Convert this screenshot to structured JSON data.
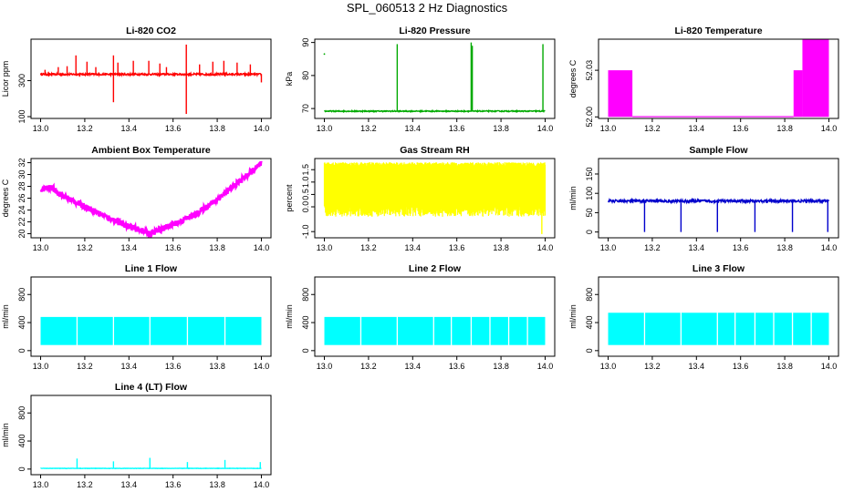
{
  "page": {
    "title": "SPL_060513  2 Hz Diagnostics"
  },
  "chart_data": [
    {
      "type": "line",
      "title": "Li-820 CO2",
      "ylabel": "Licor ppm",
      "xlim": [
        13.0,
        14.0
      ],
      "ylim": [
        90,
        530
      ],
      "xticks": [
        13.0,
        13.2,
        13.4,
        13.6,
        13.8,
        14.0
      ],
      "yticks": [
        100,
        300
      ],
      "color": "#ff0000",
      "pattern": "spiky",
      "base": 335,
      "noise": 10,
      "spikes": [
        {
          "x": 13.02,
          "y": 360
        },
        {
          "x": 13.08,
          "y": 375
        },
        {
          "x": 13.12,
          "y": 380
        },
        {
          "x": 13.16,
          "y": 440
        },
        {
          "x": 13.21,
          "y": 405
        },
        {
          "x": 13.25,
          "y": 375
        },
        {
          "x": 13.33,
          "y": 440
        },
        {
          "x": 13.33,
          "y": 180
        },
        {
          "x": 13.35,
          "y": 400
        },
        {
          "x": 13.42,
          "y": 410
        },
        {
          "x": 13.49,
          "y": 410
        },
        {
          "x": 13.54,
          "y": 395
        },
        {
          "x": 13.57,
          "y": 375
        },
        {
          "x": 13.66,
          "y": 500
        },
        {
          "x": 13.66,
          "y": 115
        },
        {
          "x": 13.72,
          "y": 390
        },
        {
          "x": 13.78,
          "y": 405
        },
        {
          "x": 13.83,
          "y": 410
        },
        {
          "x": 13.89,
          "y": 400
        },
        {
          "x": 13.95,
          "y": 390
        },
        {
          "x": 14.0,
          "y": 290
        }
      ]
    },
    {
      "type": "line",
      "title": "Li-820 Pressure",
      "ylabel": "kPa",
      "xlim": [
        13.0,
        14.0
      ],
      "ylim": [
        67,
        91
      ],
      "xticks": [
        13.0,
        13.2,
        13.4,
        13.6,
        13.8,
        14.0
      ],
      "yticks": [
        70,
        80,
        90
      ],
      "color": "#00aa00",
      "pattern": "spiky",
      "base": 69.2,
      "noise": 0.3,
      "spikes": [
        {
          "x": 13.33,
          "y": 89.5
        },
        {
          "x": 13.665,
          "y": 90
        },
        {
          "x": 13.67,
          "y": 89
        },
        {
          "x": 13.99,
          "y": 89.5
        }
      ],
      "points": [
        {
          "x": 13.0,
          "y": 86.5
        }
      ]
    },
    {
      "type": "area",
      "title": "Li-820 Temperature",
      "ylabel": "degrees C",
      "xlim": [
        13.0,
        14.0
      ],
      "ylim": [
        51.999,
        52.05
      ],
      "xticks": [
        13.0,
        13.2,
        13.4,
        13.6,
        13.8,
        14.0
      ],
      "yticks": [
        52.0,
        52.03
      ],
      "ytick_labels": [
        "52.00",
        "52.03"
      ],
      "color": "#ff00ff",
      "pattern": "bands",
      "bands": [
        {
          "x0": 13.0,
          "x1": 13.11,
          "y0": 52.0,
          "y1": 52.03
        },
        {
          "x0": 13.11,
          "x1": 13.84,
          "y0": 52.0,
          "y1": 52.0005
        },
        {
          "x0": 13.84,
          "x1": 13.88,
          "y0": 52.0,
          "y1": 52.03
        },
        {
          "x0": 13.88,
          "x1": 14.0,
          "y0": 52.0,
          "y1": 52.05
        }
      ]
    },
    {
      "type": "line",
      "title": "Ambient Box Temperature",
      "ylabel": "degrees C",
      "xlim": [
        13.0,
        14.0
      ],
      "ylim": [
        19.3,
        32.7
      ],
      "xticks": [
        13.0,
        13.2,
        13.4,
        13.6,
        13.8,
        14.0
      ],
      "yticks": [
        20,
        22,
        24,
        26,
        28,
        30,
        32
      ],
      "color": "#ff00ff",
      "pattern": "curve",
      "noise": 0.5,
      "curve": [
        {
          "x": 13.0,
          "y": 27.5
        },
        {
          "x": 13.05,
          "y": 27.8
        },
        {
          "x": 13.1,
          "y": 26.4
        },
        {
          "x": 13.2,
          "y": 24.6
        },
        {
          "x": 13.3,
          "y": 22.8
        },
        {
          "x": 13.4,
          "y": 21.2
        },
        {
          "x": 13.5,
          "y": 20.0
        },
        {
          "x": 13.6,
          "y": 21.6
        },
        {
          "x": 13.7,
          "y": 23.2
        },
        {
          "x": 13.8,
          "y": 25.8
        },
        {
          "x": 13.9,
          "y": 28.8
        },
        {
          "x": 14.0,
          "y": 31.8
        }
      ]
    },
    {
      "type": "area",
      "title": "Gas Stream RH",
      "ylabel": "percent",
      "xlim": [
        13.0,
        14.0
      ],
      "ylim": [
        -1.25,
        1.95
      ],
      "xticks": [
        13.0,
        13.2,
        13.4,
        13.6,
        13.8,
        14.0
      ],
      "yticks": [
        -1.0,
        0.0,
        0.5,
        1.0,
        1.5
      ],
      "ytick_labels": [
        "-1.0",
        "0.0",
        "0.5",
        "1.0",
        "1.5"
      ],
      "color": "#ffff00",
      "pattern": "noiseband",
      "upper": [
        1.65,
        1.8
      ],
      "lower": [
        -0.4,
        0.05
      ],
      "dips": [
        {
          "x": 13.985,
          "y": -1.1
        }
      ]
    },
    {
      "type": "line",
      "title": "Sample Flow",
      "ylabel": "ml/min",
      "xlim": [
        13.0,
        14.0
      ],
      "ylim": [
        -15,
        190
      ],
      "xticks": [
        13.0,
        13.2,
        13.4,
        13.6,
        13.8,
        14.0
      ],
      "yticks": [
        0,
        50,
        100,
        150
      ],
      "color": "#0000cc",
      "pattern": "dips",
      "base": 80,
      "noise": 7,
      "dips": [
        {
          "x": 13.165,
          "y": 0
        },
        {
          "x": 13.33,
          "y": 0
        },
        {
          "x": 13.495,
          "y": 0
        },
        {
          "x": 13.665,
          "y": 0
        },
        {
          "x": 13.835,
          "y": 0
        },
        {
          "x": 13.995,
          "y": 0
        }
      ]
    },
    {
      "type": "area",
      "title": "Line 1 Flow",
      "ylabel": "ml/min",
      "xlim": [
        13.0,
        14.0
      ],
      "ylim": [
        -80,
        1050
      ],
      "xticks": [
        13.0,
        13.2,
        13.4,
        13.6,
        13.8,
        14.0
      ],
      "yticks": [
        0,
        400,
        800
      ],
      "color": "#00ffff",
      "pattern": "block",
      "upper": 480,
      "lower": 80,
      "gaps": [
        13.165,
        13.33,
        13.495,
        13.665,
        13.835
      ]
    },
    {
      "type": "area",
      "title": "Line 2 Flow",
      "ylabel": "ml/min",
      "xlim": [
        13.0,
        14.0
      ],
      "ylim": [
        -80,
        1050
      ],
      "xticks": [
        13.0,
        13.2,
        13.4,
        13.6,
        13.8,
        14.0
      ],
      "yticks": [
        0,
        400,
        800
      ],
      "color": "#00ffff",
      "pattern": "block",
      "upper": 480,
      "lower": 80,
      "gaps": [
        13.165,
        13.33,
        13.495,
        13.575,
        13.665,
        13.75,
        13.835,
        13.92
      ]
    },
    {
      "type": "area",
      "title": "Line 3 Flow",
      "ylabel": "ml/min",
      "xlim": [
        13.0,
        14.0
      ],
      "ylim": [
        -80,
        1050
      ],
      "xticks": [
        13.0,
        13.2,
        13.4,
        13.6,
        13.8,
        14.0
      ],
      "yticks": [
        0,
        400,
        800
      ],
      "color": "#00ffff",
      "pattern": "block",
      "upper": 540,
      "lower": 80,
      "gaps": [
        13.165,
        13.33,
        13.495,
        13.575,
        13.665,
        13.75,
        13.835,
        13.92
      ]
    },
    {
      "type": "line",
      "title": "Line 4 (LT) Flow",
      "ylabel": "ml/min",
      "xlim": [
        13.0,
        14.0
      ],
      "ylim": [
        -80,
        1050
      ],
      "xticks": [
        13.0,
        13.2,
        13.4,
        13.6,
        13.8,
        14.0
      ],
      "yticks": [
        0,
        400,
        800
      ],
      "color": "#00ffff",
      "pattern": "spiky",
      "base": 10,
      "noise": 5,
      "spikes": [
        {
          "x": 13.165,
          "y": 150
        },
        {
          "x": 13.33,
          "y": 110
        },
        {
          "x": 13.495,
          "y": 160
        },
        {
          "x": 13.665,
          "y": 100
        },
        {
          "x": 13.835,
          "y": 130
        },
        {
          "x": 13.995,
          "y": 100
        }
      ]
    }
  ]
}
